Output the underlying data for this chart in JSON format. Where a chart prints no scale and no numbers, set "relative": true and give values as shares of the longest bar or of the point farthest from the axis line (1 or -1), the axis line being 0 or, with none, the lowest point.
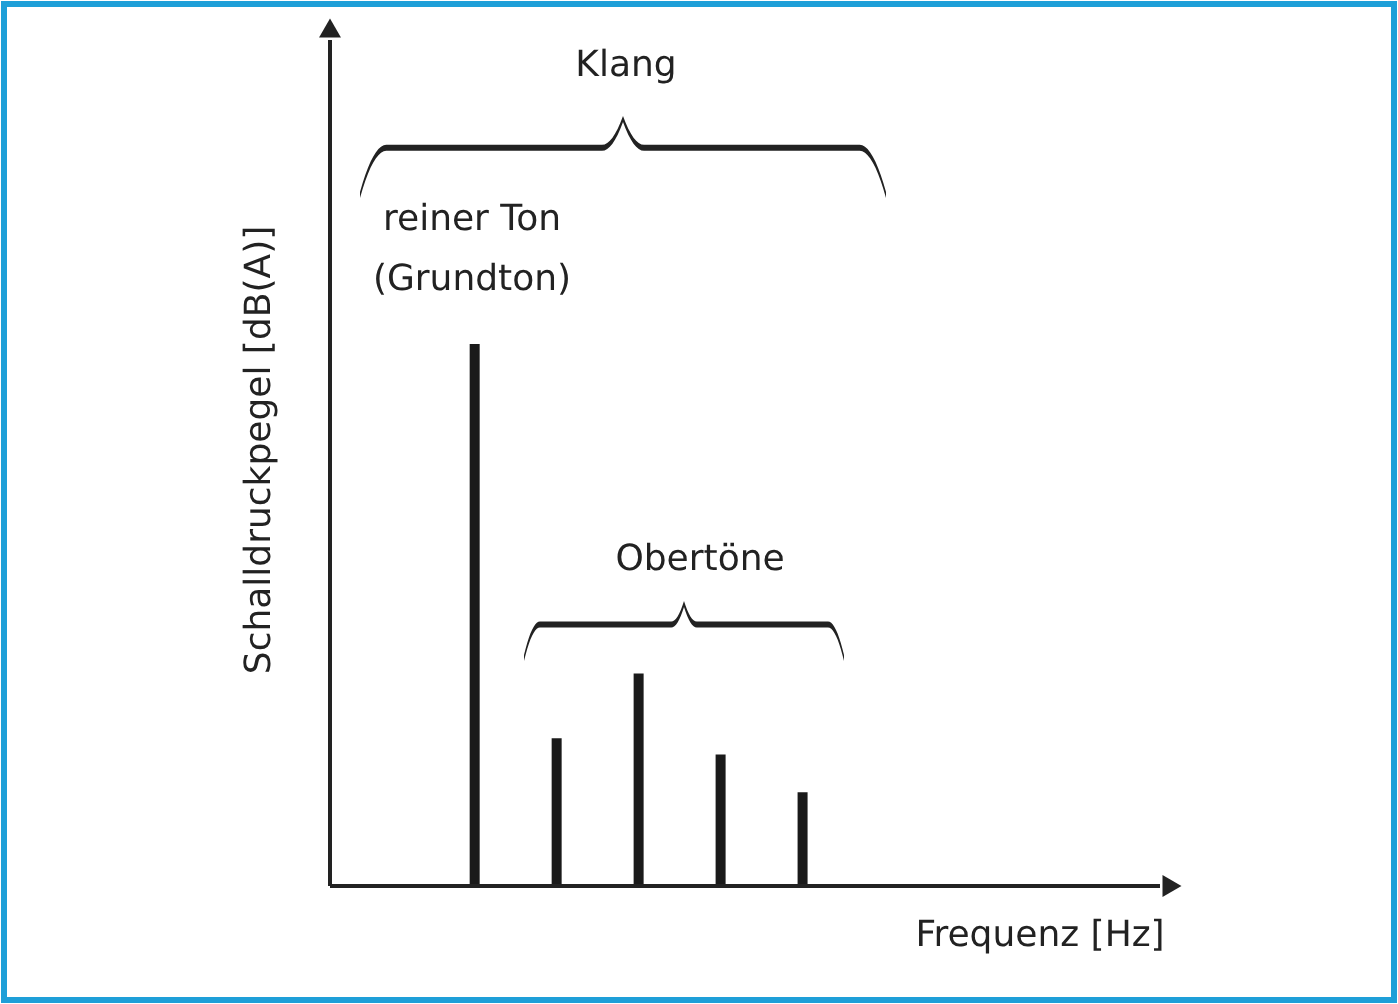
{
  "chart_data": {
    "type": "bar",
    "relative": true,
    "xlabel": "Frequenz [Hz]",
    "ylabel": "Schalldruckpegel [dB(A)]",
    "categories": [
      null,
      null,
      null,
      null,
      null
    ],
    "values": [
      1,
      0.27,
      0.39,
      0.24,
      0.17
    ],
    "color": "#1a1a1a",
    "annotations": [
      "Klang",
      "reiner Ton\n(Grundton)",
      "Obertöne"
    ]
  }
}
